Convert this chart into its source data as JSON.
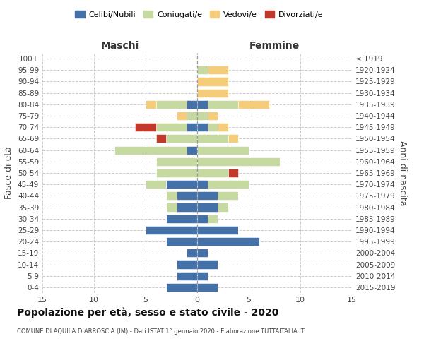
{
  "age_groups": [
    "0-4",
    "5-9",
    "10-14",
    "15-19",
    "20-24",
    "25-29",
    "30-34",
    "35-39",
    "40-44",
    "45-49",
    "50-54",
    "55-59",
    "60-64",
    "65-69",
    "70-74",
    "75-79",
    "80-84",
    "85-89",
    "90-94",
    "95-99",
    "100+"
  ],
  "birth_years": [
    "2015-2019",
    "2010-2014",
    "2005-2009",
    "2000-2004",
    "1995-1999",
    "1990-1994",
    "1985-1989",
    "1980-1984",
    "1975-1979",
    "1970-1974",
    "1965-1969",
    "1960-1964",
    "1955-1959",
    "1950-1954",
    "1945-1949",
    "1940-1944",
    "1935-1939",
    "1930-1934",
    "1925-1929",
    "1920-1924",
    "≤ 1919"
  ],
  "maschi": {
    "celibi": [
      3,
      2,
      2,
      1,
      3,
      5,
      3,
      2,
      2,
      3,
      0,
      0,
      1,
      0,
      1,
      0,
      1,
      0,
      0,
      0,
      0
    ],
    "coniugati": [
      0,
      0,
      0,
      0,
      0,
      0,
      0,
      1,
      1,
      2,
      4,
      4,
      7,
      3,
      3,
      1,
      3,
      0,
      0,
      0,
      0
    ],
    "vedovi": [
      0,
      0,
      0,
      0,
      0,
      0,
      0,
      0,
      0,
      0,
      0,
      0,
      0,
      0,
      0,
      1,
      1,
      0,
      0,
      0,
      0
    ],
    "divorziati": [
      0,
      0,
      0,
      0,
      0,
      0,
      0,
      0,
      0,
      0,
      0,
      0,
      0,
      1,
      2,
      0,
      0,
      0,
      0,
      0,
      0
    ]
  },
  "femmine": {
    "nubili": [
      2,
      1,
      2,
      1,
      6,
      4,
      1,
      2,
      2,
      1,
      0,
      0,
      0,
      0,
      1,
      0,
      1,
      0,
      0,
      0,
      0
    ],
    "coniugate": [
      0,
      0,
      0,
      0,
      0,
      0,
      1,
      1,
      2,
      4,
      3,
      8,
      5,
      3,
      1,
      1,
      3,
      0,
      0,
      1,
      0
    ],
    "vedove": [
      0,
      0,
      0,
      0,
      0,
      0,
      0,
      0,
      0,
      0,
      0,
      0,
      0,
      1,
      1,
      1,
      3,
      3,
      3,
      2,
      0
    ],
    "divorziate": [
      0,
      0,
      0,
      0,
      0,
      0,
      0,
      0,
      0,
      0,
      1,
      0,
      0,
      0,
      0,
      0,
      0,
      0,
      0,
      0,
      0
    ]
  },
  "colors": {
    "celibi": "#4472a8",
    "coniugati": "#c5d9a0",
    "vedovi": "#f5cc7a",
    "divorziati": "#c0392b"
  },
  "xlim": 15,
  "title": "Popolazione per età, sesso e stato civile - 2020",
  "subtitle": "COMUNE DI AQUILA D’ARROSCIA (IM) - Dati ISTAT 1° gennaio 2020 - Elaborazione TUTTAITALIA.IT",
  "ylabel_left": "Fasce di età",
  "ylabel_right": "Anni di nascita",
  "legend_labels": [
    "Celibi/Nubili",
    "Coniugati/e",
    "Vedovi/e",
    "Divorziati/e"
  ]
}
